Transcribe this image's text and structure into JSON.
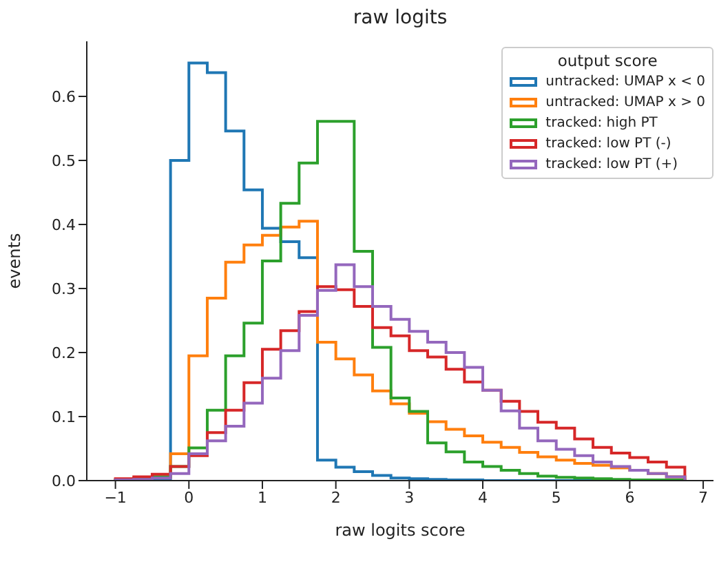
{
  "chart_data": {
    "type": "histogram",
    "title": "raw logits",
    "xlabel": "raw logits score",
    "ylabel": "events",
    "legend_title": "output score",
    "legend": "top right",
    "grid": false,
    "bins": [
      -1,
      -0.75,
      -0.5,
      -0.25,
      0,
      0.25,
      0.5,
      0.75,
      1,
      1.25,
      1.5,
      1.75,
      2,
      2.25,
      2.5,
      2.75,
      3,
      3.25,
      3.5,
      3.75,
      4,
      4.25,
      4.5,
      4.75,
      5,
      5.25,
      5.5,
      5.75,
      6,
      6.25,
      6.5,
      6.75
    ],
    "xlim": [
      -1.39,
      7.14
    ],
    "xticks": [
      {
        "value": -1,
        "label": "−1"
      },
      0,
      1,
      2,
      3,
      4,
      5,
      6,
      7
    ],
    "ylim": [
      0,
      0.686
    ],
    "yticks": [
      {
        "value": 0,
        "label": "0.0"
      },
      0.1,
      0.2,
      0.3,
      0.4,
      0.5,
      0.6
    ],
    "series": [
      {
        "name": "untracked: UMAP x < 0",
        "color": "#1f77b4",
        "values": [
          0,
          0,
          0,
          0.5,
          0.652,
          0.637,
          0.546,
          0.454,
          0.394,
          0.373,
          0.348,
          0.032,
          0.021,
          0.014,
          0.008,
          0.004,
          0.003,
          0.002,
          0.001,
          0.001,
          0,
          0,
          0,
          0,
          0,
          0,
          0,
          0,
          0,
          0,
          0
        ]
      },
      {
        "name": "untracked: UMAP x > 0",
        "color": "#ff7f0e",
        "values": [
          0.002,
          0.004,
          0.006,
          0.042,
          0.195,
          0.285,
          0.341,
          0.368,
          0.383,
          0.396,
          0.405,
          0.216,
          0.19,
          0.165,
          0.14,
          0.12,
          0.105,
          0.092,
          0.08,
          0.07,
          0.06,
          0.052,
          0.044,
          0.037,
          0.032,
          0.027,
          0.024,
          0.02,
          0.016,
          0.011,
          0.006
        ]
      },
      {
        "name": "tracked: high PT",
        "color": "#2ca02c",
        "values": [
          0.001,
          0.003,
          0.006,
          0.022,
          0.051,
          0.11,
          0.195,
          0.246,
          0.343,
          0.433,
          0.496,
          0.561,
          0.561,
          0.358,
          0.208,
          0.129,
          0.108,
          0.059,
          0.045,
          0.029,
          0.022,
          0.016,
          0.011,
          0.007,
          0.005,
          0.004,
          0.003,
          0.002,
          0.001,
          0.001,
          0.001
        ]
      },
      {
        "name": "tracked: low PT (-)",
        "color": "#d62728",
        "values": [
          0.003,
          0.006,
          0.01,
          0.022,
          0.039,
          0.075,
          0.11,
          0.153,
          0.205,
          0.234,
          0.264,
          0.303,
          0.298,
          0.272,
          0.239,
          0.226,
          0.203,
          0.193,
          0.174,
          0.154,
          0.141,
          0.124,
          0.108,
          0.091,
          0.082,
          0.065,
          0.052,
          0.043,
          0.036,
          0.029,
          0.021
        ]
      },
      {
        "name": "tracked: low PT (+)",
        "color": "#9467bd",
        "values": [
          0.001,
          0.002,
          0.004,
          0.011,
          0.042,
          0.062,
          0.085,
          0.121,
          0.16,
          0.203,
          0.258,
          0.297,
          0.337,
          0.303,
          0.272,
          0.252,
          0.233,
          0.216,
          0.2,
          0.177,
          0.141,
          0.109,
          0.082,
          0.062,
          0.049,
          0.039,
          0.029,
          0.022,
          0.016,
          0.011,
          0.006
        ]
      }
    ]
  }
}
